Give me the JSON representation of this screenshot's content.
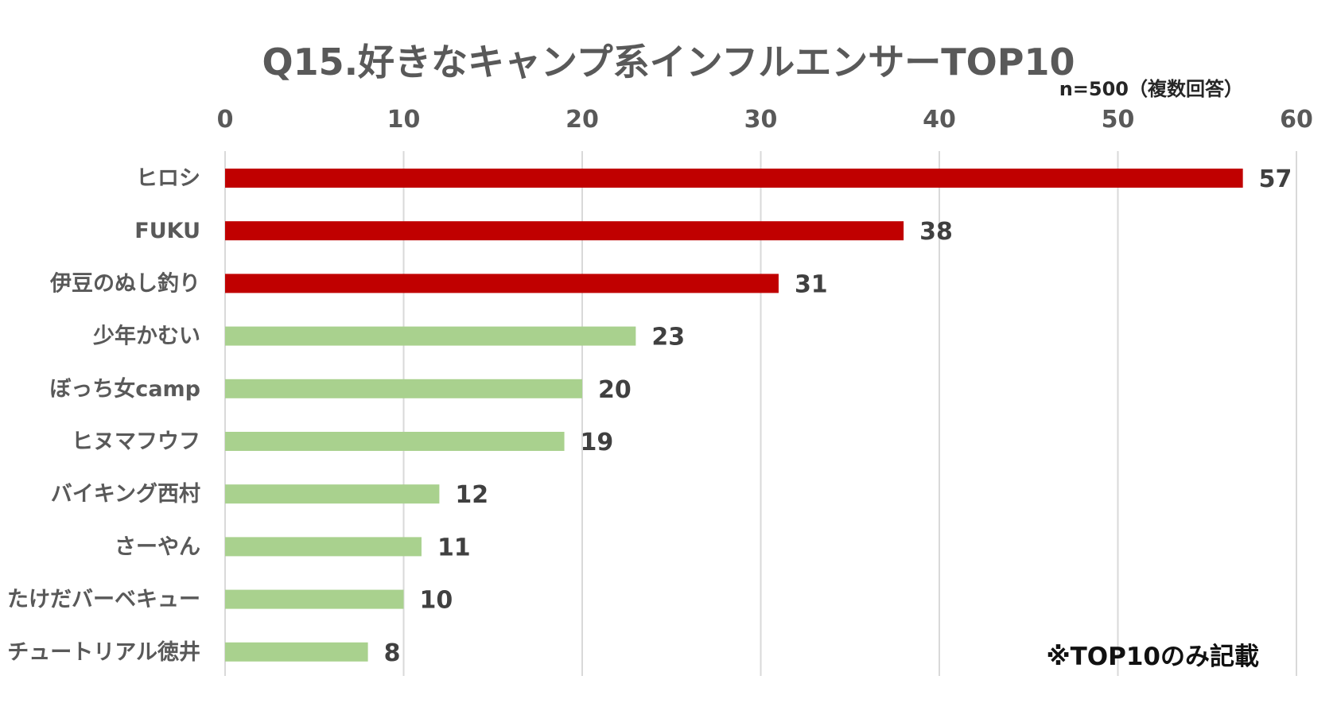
{
  "chart_data": {
    "type": "bar",
    "orientation": "horizontal",
    "title": "Q15.好きなキャンプ系インフルエンサーTOP10",
    "subtitle": "n=500（複数回答）",
    "note": "※TOP10のみ記載",
    "categories": [
      "ヒロシ",
      "FUKU",
      "伊豆のぬし釣り",
      "少年かむい",
      "ぼっち女camp",
      "ヒヌマフウフ",
      "バイキング西村",
      "さーやん",
      "たけだバーベキュー",
      "チュートリアル徳井"
    ],
    "values": [
      57,
      38,
      31,
      23,
      20,
      19,
      12,
      11,
      10,
      8
    ],
    "xlim": [
      0,
      60
    ],
    "x_ticks": [
      0,
      10,
      20,
      30,
      40,
      50,
      60
    ],
    "x_axis_position": "top",
    "grid": true,
    "data_labels": true,
    "highlight_top_n": 3,
    "colors": {
      "highlight": "#c00000",
      "default": "#a9d18e",
      "grid": "#d9d9d9",
      "tick_label": "#595959",
      "category_label": "#595959",
      "data_label": "#404040"
    }
  }
}
